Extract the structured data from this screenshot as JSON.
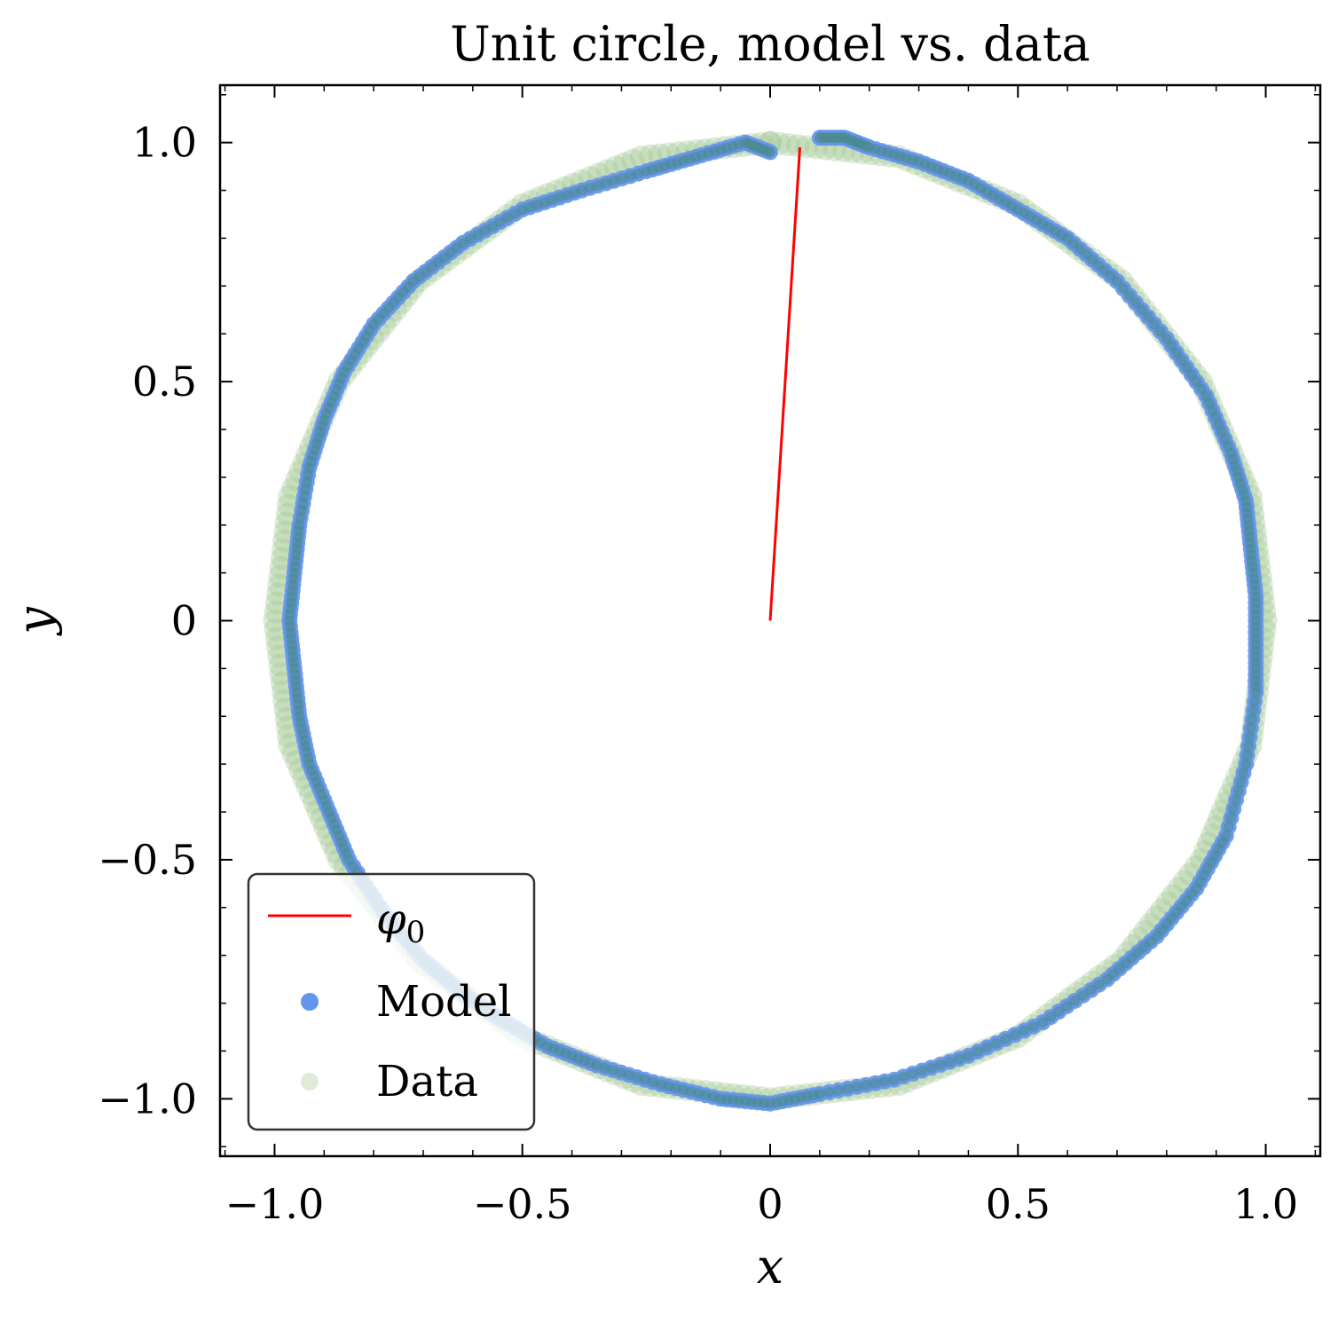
{
  "chart_data": {
    "type": "scatter",
    "title": "Unit circle, model vs. data",
    "xlabel": "x",
    "ylabel": "y",
    "xlim": [
      -1.11,
      1.11
    ],
    "ylim": [
      -1.12,
      1.12
    ],
    "xticks": [
      -1.0,
      -0.5,
      0,
      0.5,
      1.0
    ],
    "xtick_labels": [
      "−1.0",
      "−0.5",
      "0",
      "0.5",
      "1.0"
    ],
    "yticks": [
      -1.0,
      -0.5,
      0,
      0.5,
      1.0
    ],
    "ytick_labels": [
      "−1.0",
      "−0.5",
      "0",
      "0.5",
      "1.0"
    ],
    "grid": false,
    "legend_position": "lower-left",
    "series": [
      {
        "name": "φ",
        "name_subscript": "0",
        "kind": "line",
        "color": "#ff0000",
        "x": [
          0,
          0.06
        ],
        "y": [
          0,
          0.99
        ]
      },
      {
        "name": "Model",
        "kind": "scatter",
        "color": "#6495ed",
        "points": [
          [
            0.1,
            1.01
          ],
          [
            0.15,
            1.01
          ],
          [
            0.2,
            0.99
          ],
          [
            0.3,
            0.96
          ],
          [
            0.4,
            0.92
          ],
          [
            0.5,
            0.86
          ],
          [
            0.6,
            0.8
          ],
          [
            0.7,
            0.71
          ],
          [
            0.8,
            0.59
          ],
          [
            0.88,
            0.47
          ],
          [
            0.93,
            0.35
          ],
          [
            0.96,
            0.25
          ],
          [
            0.97,
            0.15
          ],
          [
            0.98,
            0.05
          ],
          [
            0.98,
            -0.05
          ],
          [
            0.98,
            -0.15
          ],
          [
            0.96,
            -0.3
          ],
          [
            0.92,
            -0.45
          ],
          [
            0.86,
            -0.56
          ],
          [
            0.78,
            -0.66
          ],
          [
            0.68,
            -0.75
          ],
          [
            0.55,
            -0.84
          ],
          [
            0.4,
            -0.91
          ],
          [
            0.25,
            -0.96
          ],
          [
            0.1,
            -0.99
          ],
          [
            0.0,
            -1.01
          ],
          [
            -0.1,
            -1.0
          ],
          [
            -0.22,
            -0.97
          ],
          [
            -0.35,
            -0.93
          ],
          [
            -0.45,
            -0.89
          ],
          [
            -0.55,
            -0.83
          ],
          [
            -0.62,
            -0.78
          ],
          [
            -0.7,
            -0.71
          ],
          [
            -0.78,
            -0.61
          ],
          [
            -0.85,
            -0.5
          ],
          [
            -0.89,
            -0.4
          ],
          [
            -0.93,
            -0.3
          ],
          [
            -0.95,
            -0.2
          ],
          [
            -0.96,
            -0.1
          ],
          [
            -0.97,
            0.0
          ],
          [
            -0.96,
            0.1
          ],
          [
            -0.95,
            0.2
          ],
          [
            -0.93,
            0.32
          ],
          [
            -0.9,
            0.42
          ],
          [
            -0.86,
            0.52
          ],
          [
            -0.8,
            0.62
          ],
          [
            -0.72,
            0.71
          ],
          [
            -0.62,
            0.79
          ],
          [
            -0.5,
            0.86
          ],
          [
            -0.38,
            0.9
          ],
          [
            -0.25,
            0.94
          ],
          [
            -0.15,
            0.97
          ],
          [
            -0.05,
            1.0
          ],
          [
            0.0,
            0.98
          ]
        ]
      },
      {
        "name": "Data",
        "kind": "scatter",
        "color": "#9dc58e",
        "points": [
          [
            0.0,
            1.0
          ],
          [
            0.26,
            0.97
          ],
          [
            0.5,
            0.87
          ],
          [
            0.71,
            0.71
          ],
          [
            0.87,
            0.5
          ],
          [
            0.97,
            0.26
          ],
          [
            1.0,
            0.0
          ],
          [
            0.97,
            -0.26
          ],
          [
            0.87,
            -0.5
          ],
          [
            0.71,
            -0.71
          ],
          [
            0.5,
            -0.87
          ],
          [
            0.26,
            -0.97
          ],
          [
            0.0,
            -1.0
          ],
          [
            -0.26,
            -0.97
          ],
          [
            -0.5,
            -0.87
          ],
          [
            -0.71,
            -0.71
          ],
          [
            -0.87,
            -0.5
          ],
          [
            -0.97,
            -0.26
          ],
          [
            -1.0,
            0.0
          ],
          [
            -0.97,
            0.26
          ],
          [
            -0.87,
            0.5
          ],
          [
            -0.71,
            0.71
          ],
          [
            -0.5,
            0.87
          ],
          [
            -0.26,
            0.97
          ]
        ]
      }
    ]
  }
}
